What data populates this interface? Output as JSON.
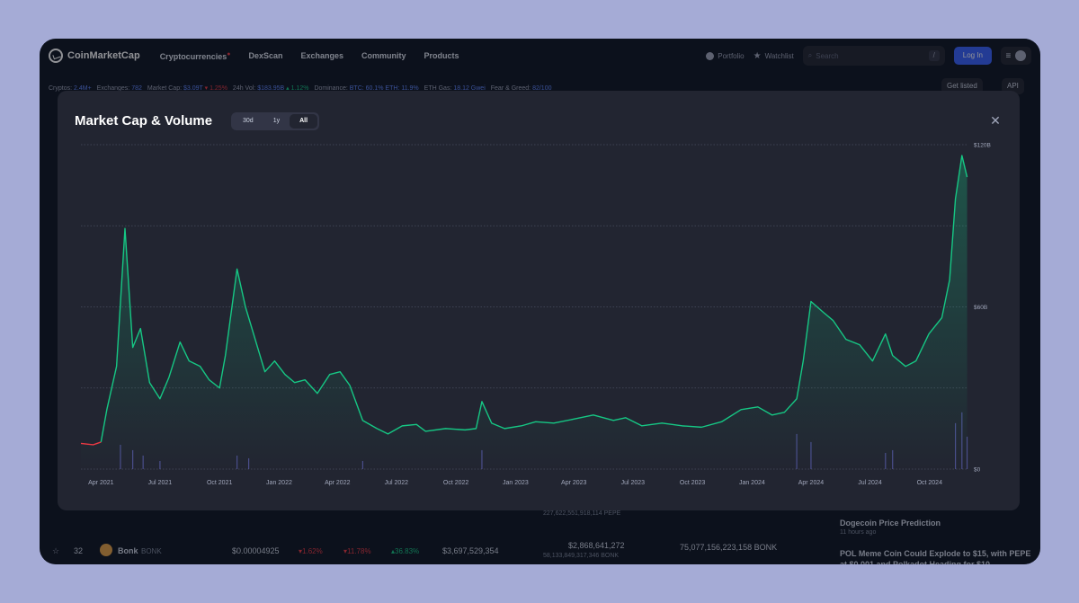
{
  "nav": {
    "brand": "CoinMarketCap",
    "items": [
      "Cryptocurrencies",
      "DexScan",
      "Exchanges",
      "Community",
      "Products"
    ],
    "portfolio": "Portfolio",
    "watchlist": "Watchlist",
    "search_placeholder": "Search",
    "search_shortcut": "/",
    "login": "Log In"
  },
  "stats": {
    "cryptos_label": "Cryptos:",
    "cryptos": "2.4M+",
    "exchanges_label": "Exchanges:",
    "exchanges": "782",
    "mcap_label": "Market Cap:",
    "mcap": "$3.09T",
    "mcap_change": "▾ 1.25%",
    "vol_label": "24h Vol:",
    "vol": "$183.95B",
    "vol_change": "▴ 1.12%",
    "dominance_label": "Dominance:",
    "dominance": "BTC: 60.1% ETH: 11.9%",
    "gas_label": "ETH Gas:",
    "gas": "18.12 Gwei",
    "fng_label": "Fear & Greed:",
    "fng": "82/100",
    "get_listed": "Get listed",
    "api": "API"
  },
  "background": {
    "row_rank": "32",
    "row_name": "Bonk",
    "row_symbol": "BONK",
    "row_price": "$0.00004925",
    "row_1h": "▾1.62%",
    "row_24h": "▾11.78%",
    "row_7d": "▴36.83%",
    "row_mcap": "$3,697,529,354",
    "row_vol": "$2,868,641,272",
    "row_vol_sub": "58,133,849,317,346 BONK",
    "row_supply": "75,077,156,223,158 BONK",
    "prev_vol_sub": "227,622,551,918,114 PEPE",
    "news_1": "Dogecoin Price Prediction",
    "news_1_time": "11 hours ago",
    "news_2": "POL Meme Coin Could Explode to $15, with PEPE at $0.001 and Polkadot Heading for $10"
  },
  "modal": {
    "title": "Market Cap & Volume",
    "ranges": [
      "30d",
      "1y",
      "All"
    ],
    "active_range": "All",
    "close_icon": "close-icon"
  },
  "chart_data": {
    "type": "area",
    "title": "Market Cap & Volume",
    "x_ticks": [
      "Apr 2021",
      "Jul 2021",
      "Oct 2021",
      "Jan 2022",
      "Apr 2022",
      "Jul 2022",
      "Oct 2022",
      "Jan 2023",
      "Apr 2023",
      "Jul 2023",
      "Oct 2023",
      "Jan 2024",
      "Apr 2024",
      "Jul 2024",
      "Oct 2024"
    ],
    "y_ticks": [
      "$0",
      "$60B",
      "$120B"
    ],
    "ylim": [
      0,
      120
    ],
    "y_unit": "B USD",
    "grid": "horizontal dotted",
    "colors": {
      "line": "#16c784",
      "down_line": "#ea3943",
      "volume": "#6c6fd6",
      "background": "#222531"
    },
    "series": [
      {
        "type": "market_cap",
        "x": [
          "2021-03-01",
          "2021-03-20",
          "2021-04-01",
          "2021-04-10",
          "2021-04-25",
          "2021-05-08",
          "2021-05-20",
          "2021-06-01",
          "2021-06-15",
          "2021-07-01",
          "2021-07-15",
          "2021-08-01",
          "2021-08-15",
          "2021-09-01",
          "2021-09-15",
          "2021-10-01",
          "2021-10-10",
          "2021-10-28",
          "2021-11-10",
          "2021-11-25",
          "2021-12-10",
          "2021-12-25",
          "2022-01-10",
          "2022-01-25",
          "2022-02-10",
          "2022-03-01",
          "2022-03-20",
          "2022-04-05",
          "2022-04-20",
          "2022-05-10",
          "2022-06-01",
          "2022-06-18",
          "2022-07-10",
          "2022-08-01",
          "2022-08-15",
          "2022-09-15",
          "2022-10-15",
          "2022-11-01",
          "2022-11-10",
          "2022-11-25",
          "2022-12-15",
          "2023-01-10",
          "2023-02-01",
          "2023-03-01",
          "2023-04-01",
          "2023-05-01",
          "2023-06-01",
          "2023-06-20",
          "2023-07-15",
          "2023-08-15",
          "2023-09-15",
          "2023-10-15",
          "2023-11-15",
          "2023-12-15",
          "2024-01-10",
          "2024-02-01",
          "2024-02-20",
          "2024-03-10",
          "2024-03-20",
          "2024-04-01",
          "2024-04-20",
          "2024-05-05",
          "2024-05-25",
          "2024-06-15",
          "2024-07-05",
          "2024-07-25",
          "2024-08-05",
          "2024-08-25",
          "2024-09-10",
          "2024-09-30",
          "2024-10-20",
          "2024-11-01",
          "2024-11-10",
          "2024-11-20",
          "2024-11-28"
        ],
        "y": [
          9.5,
          9.0,
          10.0,
          22.0,
          38.0,
          89.0,
          45.0,
          52.0,
          32.0,
          26.0,
          34.0,
          47.0,
          40.0,
          38.0,
          33.0,
          30.0,
          42.0,
          74.0,
          60.0,
          48.0,
          36.0,
          40.0,
          35.0,
          32.0,
          33.0,
          28.0,
          35.0,
          36.0,
          31.0,
          18.0,
          15.0,
          13.0,
          16.0,
          16.5,
          14.0,
          15.0,
          14.5,
          15.0,
          25.0,
          17.0,
          15.0,
          16.0,
          17.5,
          17.0,
          18.5,
          20.0,
          18.0,
          19.0,
          16.0,
          17.0,
          16.0,
          15.5,
          17.5,
          22.0,
          23.0,
          20.0,
          21.0,
          26.0,
          40.0,
          62.0,
          58.0,
          55.0,
          48.0,
          46.0,
          40.0,
          50.0,
          42.0,
          38.0,
          40.0,
          50.0,
          56.0,
          70.0,
          100.0,
          116.0,
          108.0
        ]
      },
      {
        "type": "volume",
        "x": [
          "2021-05-01",
          "2021-05-20",
          "2021-06-05",
          "2021-07-01",
          "2021-10-28",
          "2021-11-15",
          "2022-05-10",
          "2022-11-10",
          "2024-03-10",
          "2024-04-01",
          "2024-07-25",
          "2024-08-05",
          "2024-11-10",
          "2024-11-20",
          "2024-11-28"
        ],
        "y": [
          9,
          7,
          5,
          3,
          5,
          4,
          3,
          7,
          13,
          10,
          6,
          7,
          17,
          21,
          12
        ]
      }
    ]
  }
}
